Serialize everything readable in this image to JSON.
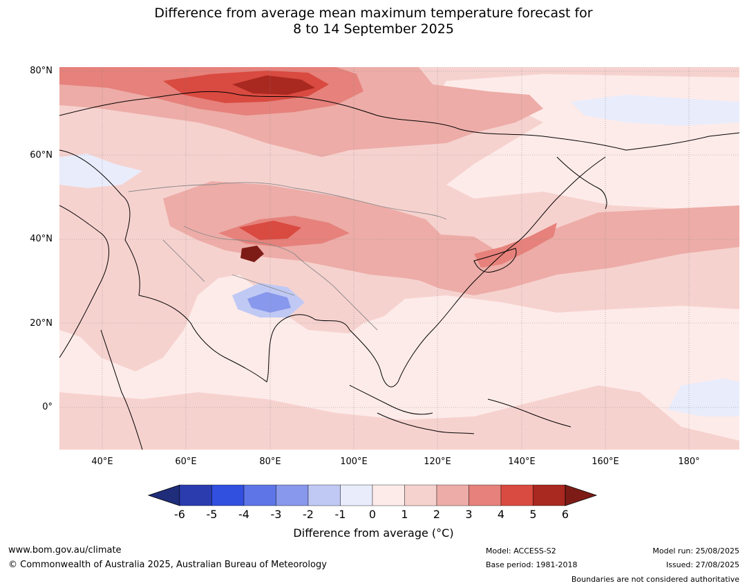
{
  "title": {
    "line1": "Difference from average mean maximum temperature forecast for",
    "line2": "8 to 14 September 2025"
  },
  "axes": {
    "lat_labels": [
      "80°N",
      "60°N",
      "40°N",
      "20°N",
      "0°"
    ],
    "lon_labels": [
      "40°E",
      "60°E",
      "80°E",
      "100°E",
      "120°E",
      "140°E",
      "160°E",
      "180°"
    ]
  },
  "colorbar": {
    "ticks": [
      "-6",
      "-5",
      "-4",
      "-3",
      "-2",
      "-1",
      "0",
      "1",
      "2",
      "3",
      "4",
      "5",
      "6"
    ],
    "colors": [
      "#1f2d7a",
      "#2a3cae",
      "#3150df",
      "#5d75e6",
      "#8898ec",
      "#c0c9f4",
      "#e9ecfb",
      "#fdebe9",
      "#f6d2cf",
      "#edaca7",
      "#e6817b",
      "#d94a40",
      "#a9281f",
      "#7d1c16"
    ],
    "label": "Difference from average (°C)"
  },
  "footer": {
    "website": "www.bom.gov.au/climate",
    "copyright": "© Commonwealth of Australia 2025, Australian Bureau of Meteorology",
    "model": "Model: ACCESS-S2",
    "base_period": "Base period: 1981-2018",
    "model_run": "Model run: 25/08/2025",
    "issued": "Issued: 27/08/2025",
    "disclaimer": "Boundaries are not considered authoritative"
  }
}
